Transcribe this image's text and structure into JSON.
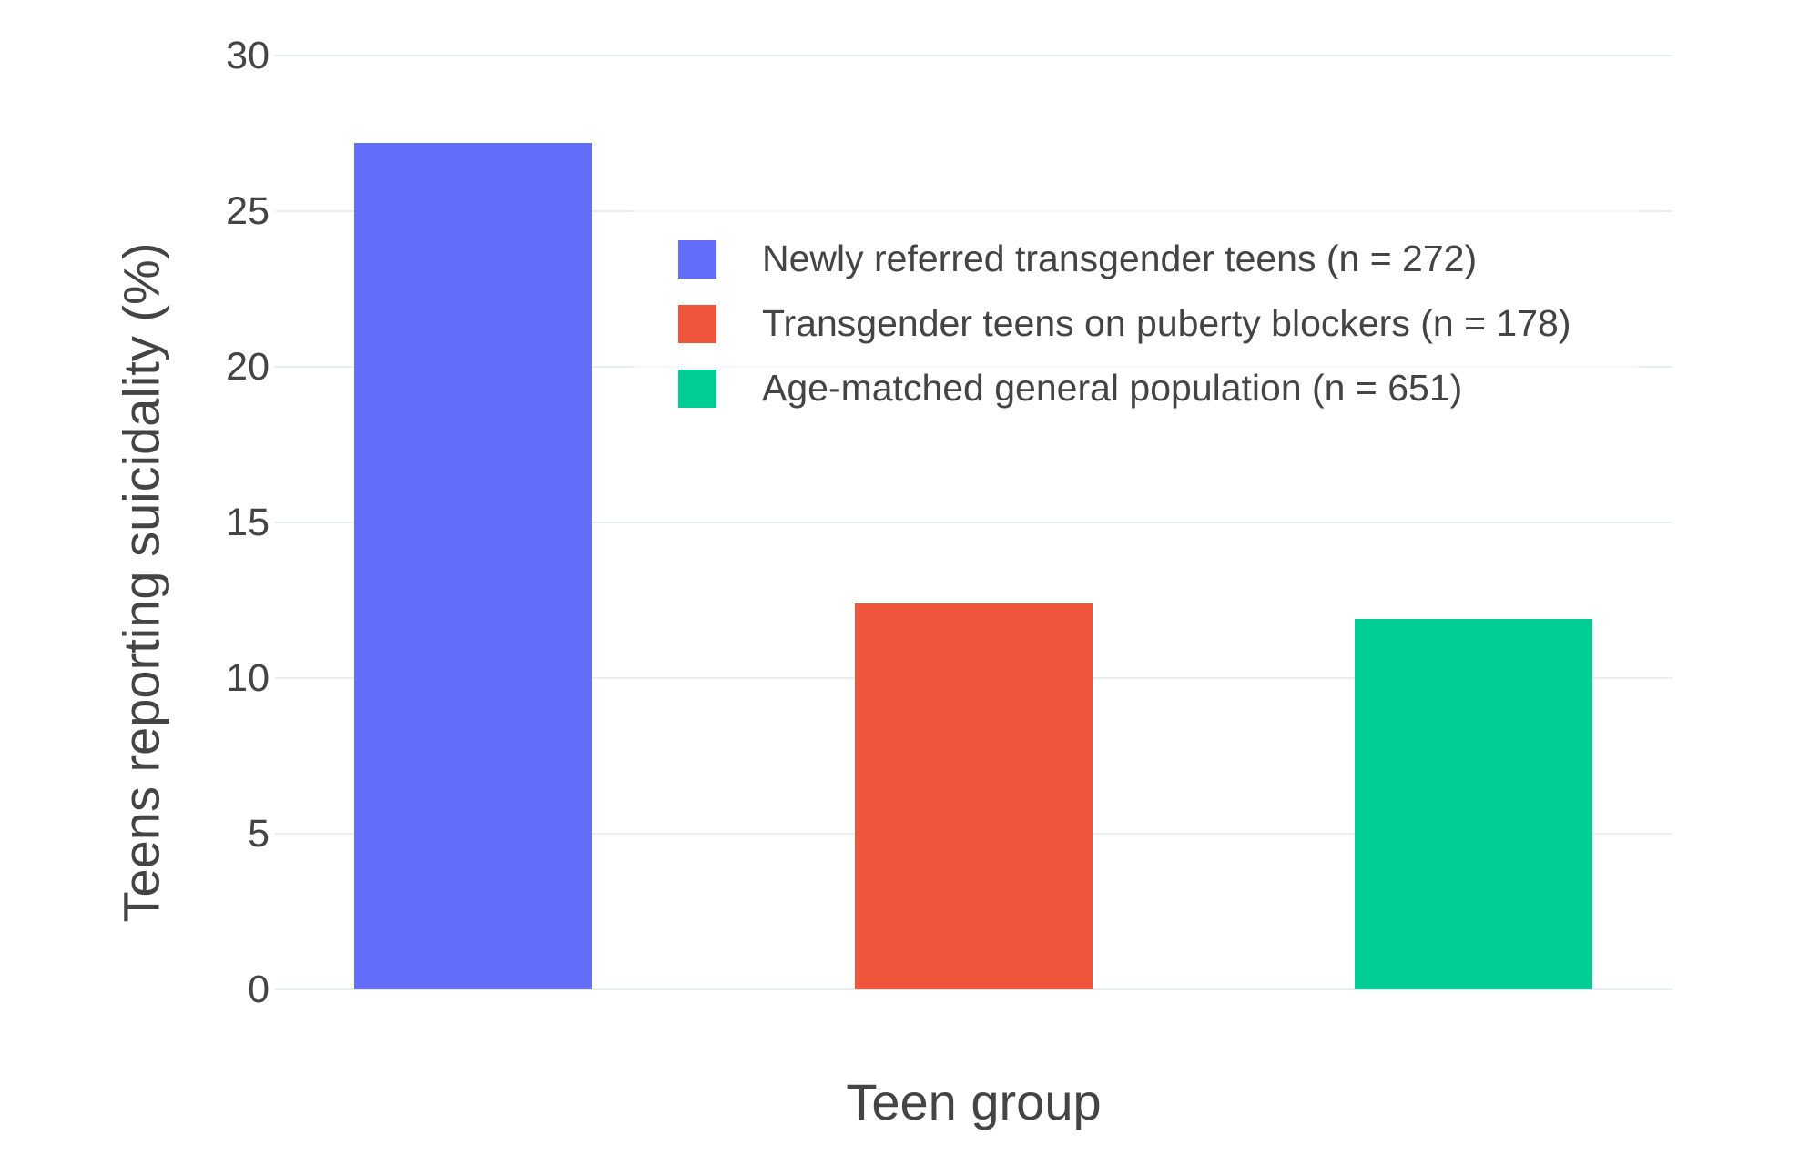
{
  "chart_data": {
    "type": "bar",
    "title": "",
    "xlabel": "Teen group",
    "ylabel": "Teens reporting suicidality (%)",
    "ylim": [
      0,
      30
    ],
    "yticks": [
      0,
      5,
      10,
      15,
      20,
      25,
      30
    ],
    "grid": true,
    "legend_position": "inside top-center",
    "series": [
      {
        "name": "Newly referred transgender teens (n = 272)",
        "value": 27.2,
        "color": "#636EFA"
      },
      {
        "name": "Transgender teens on puberty blockers (n = 178)",
        "value": 12.4,
        "color": "#EF553B"
      },
      {
        "name": "Age-matched general population (n = 651)",
        "value": 11.9,
        "color": "#00CC96"
      }
    ]
  },
  "colors": {
    "text": "#444444",
    "gridline": "#E9EDF5",
    "background": "#FFFFFF"
  }
}
